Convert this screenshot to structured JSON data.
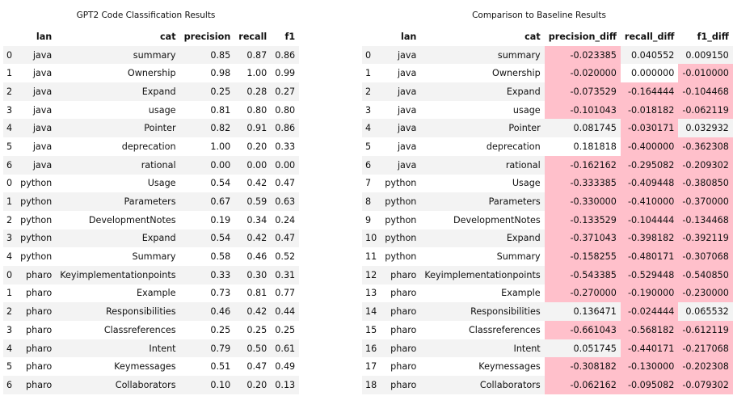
{
  "left_table": {
    "title": "GPT2 Code Classification Results",
    "columns": [
      "",
      "lan",
      "cat",
      "precision",
      "recall",
      "f1"
    ],
    "rows": [
      [
        "0",
        "java",
        "summary",
        "0.85",
        "0.87",
        "0.86"
      ],
      [
        "1",
        "java",
        "Ownership",
        "0.98",
        "1.00",
        "0.99"
      ],
      [
        "2",
        "java",
        "Expand",
        "0.25",
        "0.28",
        "0.27"
      ],
      [
        "3",
        "java",
        "usage",
        "0.81",
        "0.80",
        "0.80"
      ],
      [
        "4",
        "java",
        "Pointer",
        "0.82",
        "0.91",
        "0.86"
      ],
      [
        "5",
        "java",
        "deprecation",
        "1.00",
        "0.20",
        "0.33"
      ],
      [
        "6",
        "java",
        "rational",
        "0.00",
        "0.00",
        "0.00"
      ],
      [
        "0",
        "python",
        "Usage",
        "0.54",
        "0.42",
        "0.47"
      ],
      [
        "1",
        "python",
        "Parameters",
        "0.67",
        "0.59",
        "0.63"
      ],
      [
        "2",
        "python",
        "DevelopmentNotes",
        "0.19",
        "0.34",
        "0.24"
      ],
      [
        "3",
        "python",
        "Expand",
        "0.54",
        "0.42",
        "0.47"
      ],
      [
        "4",
        "python",
        "Summary",
        "0.58",
        "0.46",
        "0.52"
      ],
      [
        "0",
        "pharo",
        "Keyimplementationpoints",
        "0.33",
        "0.30",
        "0.31"
      ],
      [
        "1",
        "pharo",
        "Example",
        "0.73",
        "0.81",
        "0.77"
      ],
      [
        "2",
        "pharo",
        "Responsibilities",
        "0.46",
        "0.42",
        "0.44"
      ],
      [
        "3",
        "pharo",
        "Classreferences",
        "0.25",
        "0.25",
        "0.25"
      ],
      [
        "4",
        "pharo",
        "Intent",
        "0.79",
        "0.50",
        "0.61"
      ],
      [
        "5",
        "pharo",
        "Keymessages",
        "0.51",
        "0.47",
        "0.49"
      ],
      [
        "6",
        "pharo",
        "Collaborators",
        "0.10",
        "0.20",
        "0.13"
      ]
    ]
  },
  "right_table": {
    "title": "Comparison to Baseline Results",
    "columns": [
      "",
      "lan",
      "cat",
      "precision_diff",
      "recall_diff",
      "f1_diff"
    ],
    "rows": [
      [
        "0",
        "java",
        "summary",
        "-0.023385",
        "0.040552",
        "0.009150"
      ],
      [
        "1",
        "java",
        "Ownership",
        "-0.020000",
        "0.000000",
        "-0.010000"
      ],
      [
        "2",
        "java",
        "Expand",
        "-0.073529",
        "-0.164444",
        "-0.104468"
      ],
      [
        "3",
        "java",
        "usage",
        "-0.101043",
        "-0.018182",
        "-0.062119"
      ],
      [
        "4",
        "java",
        "Pointer",
        "0.081745",
        "-0.030171",
        "0.032932"
      ],
      [
        "5",
        "java",
        "deprecation",
        "0.181818",
        "-0.400000",
        "-0.362308"
      ],
      [
        "6",
        "java",
        "rational",
        "-0.162162",
        "-0.295082",
        "-0.209302"
      ],
      [
        "7",
        "python",
        "Usage",
        "-0.333385",
        "-0.409448",
        "-0.380850"
      ],
      [
        "8",
        "python",
        "Parameters",
        "-0.330000",
        "-0.410000",
        "-0.370000"
      ],
      [
        "9",
        "python",
        "DevelopmentNotes",
        "-0.133529",
        "-0.104444",
        "-0.134468"
      ],
      [
        "10",
        "python",
        "Expand",
        "-0.371043",
        "-0.398182",
        "-0.392119"
      ],
      [
        "11",
        "python",
        "Summary",
        "-0.158255",
        "-0.480171",
        "-0.307068"
      ],
      [
        "12",
        "pharo",
        "Keyimplementationpoints",
        "-0.543385",
        "-0.529448",
        "-0.540850"
      ],
      [
        "13",
        "pharo",
        "Example",
        "-0.270000",
        "-0.190000",
        "-0.230000"
      ],
      [
        "14",
        "pharo",
        "Responsibilities",
        "0.136471",
        "-0.024444",
        "0.065532"
      ],
      [
        "15",
        "pharo",
        "Classreferences",
        "-0.661043",
        "-0.568182",
        "-0.612119"
      ],
      [
        "16",
        "pharo",
        "Intent",
        "0.051745",
        "-0.440171",
        "-0.217068"
      ],
      [
        "17",
        "pharo",
        "Keymessages",
        "-0.308182",
        "-0.130000",
        "-0.202308"
      ],
      [
        "18",
        "pharo",
        "Collaborators",
        "-0.062162",
        "-0.095082",
        "-0.079302"
      ]
    ],
    "highlight_color": "#ffc0cb"
  }
}
